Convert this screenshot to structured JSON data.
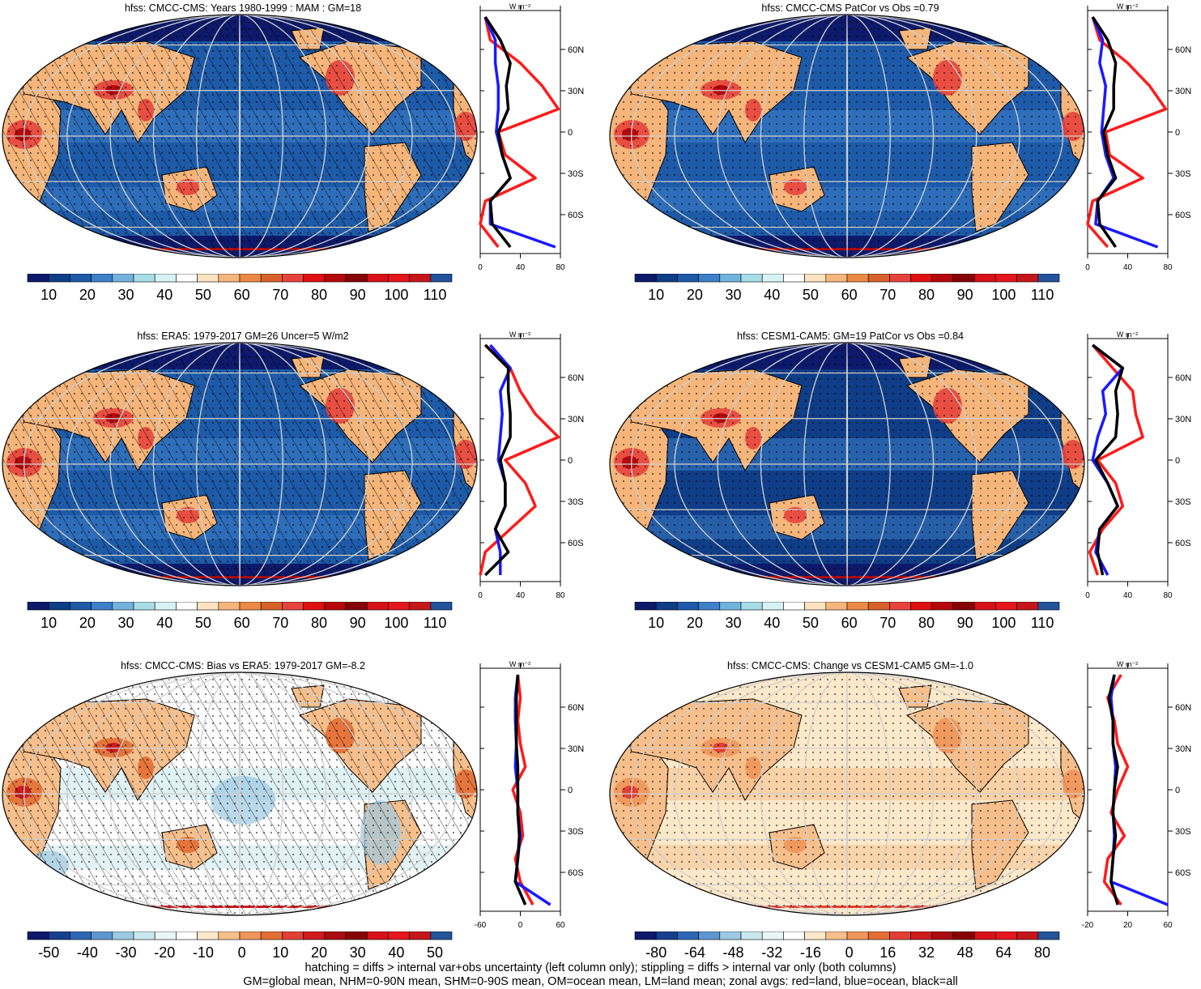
{
  "panels": [
    {
      "title": "hfss: CMCC-CMS: Years 1980-1999 : MAM : GM=18",
      "palette": "positive",
      "hatching": true,
      "stipple": true,
      "colorbar_labels": [
        "10",
        "20",
        "30",
        "40",
        "50",
        "60",
        "70",
        "80",
        "90",
        "100",
        "110"
      ],
      "zonal_ticks": [
        "0",
        "40",
        "80"
      ],
      "zonal_unit": "W m⁻²",
      "lat_labels": [
        "60N",
        "30N",
        "0",
        "30S",
        "60S"
      ]
    },
    {
      "title": "hfss: CMCC-CMS PatCor vs Obs =0.79",
      "palette": "positive",
      "hatching": false,
      "stipple": true,
      "colorbar_labels": [
        "10",
        "20",
        "30",
        "40",
        "50",
        "60",
        "70",
        "80",
        "90",
        "100",
        "110"
      ],
      "zonal_ticks": [
        "0",
        "40",
        "80"
      ],
      "zonal_unit": "W m⁻²",
      "lat_labels": [
        "60N",
        "30N",
        "0",
        "30S",
        "60S"
      ]
    },
    {
      "title": "hfss: ERA5: 1979-2017 GM=26 Uncer=5 W/m2",
      "palette": "positive",
      "hatching": true,
      "stipple": true,
      "colorbar_labels": [
        "10",
        "20",
        "30",
        "40",
        "50",
        "60",
        "70",
        "80",
        "90",
        "100",
        "110"
      ],
      "zonal_ticks": [
        "0",
        "40",
        "80"
      ],
      "zonal_unit": "W m⁻²",
      "lat_labels": [
        "60N",
        "30N",
        "0",
        "30S",
        "60S"
      ]
    },
    {
      "title": "hfss: CESM1-CAM5: GM=19 PatCor vs Obs =0.84",
      "palette": "positive",
      "hatching": false,
      "stipple": true,
      "colorbar_labels": [
        "10",
        "20",
        "30",
        "40",
        "50",
        "60",
        "70",
        "80",
        "90",
        "100",
        "110"
      ],
      "zonal_ticks": [
        "0",
        "40",
        "80"
      ],
      "zonal_unit": "W m⁻²",
      "lat_labels": [
        "60N",
        "30N",
        "0",
        "30S",
        "60S"
      ]
    },
    {
      "title": "hfss: CMCC-CMS: Bias vs ERA5: 1979-2017 GM=-8.2",
      "palette": "bias",
      "hatching": true,
      "stipple": true,
      "colorbar_labels": [
        "-50",
        "-40",
        "-30",
        "-20",
        "-10",
        "0",
        "10",
        "20",
        "30",
        "40",
        "50"
      ],
      "zonal_ticks": [
        "-60",
        "0",
        "60"
      ],
      "zonal_unit": "W m⁻²",
      "lat_labels": [
        "60N",
        "30N",
        "0",
        "30S",
        "60S"
      ]
    },
    {
      "title": "hfss: CMCC-CMS: Change vs CESM1-CAM5 GM=-1.0",
      "palette": "change",
      "hatching": false,
      "stipple": true,
      "colorbar_labels": [
        "-80",
        "-64",
        "-48",
        "-32",
        "-16",
        "0",
        "16",
        "32",
        "48",
        "64",
        "80"
      ],
      "zonal_ticks": [
        "-20",
        "20",
        "60"
      ],
      "zonal_unit": "W m⁻²",
      "lat_labels": [
        "60N",
        "30N",
        "0",
        "30S",
        "60S"
      ]
    }
  ],
  "colors": {
    "positive": [
      "#0d1a6b",
      "#0f3d87",
      "#1d5aa8",
      "#3d7fc9",
      "#72b3de",
      "#a7dde6",
      "#d6f2f2",
      "#ffffff",
      "#fce3c0",
      "#f6b57a",
      "#ec8a45",
      "#d8612a",
      "#e8423c",
      "#e00f12",
      "#b5080c",
      "#860407",
      "#d8101a",
      "#e5161c",
      "#c4161b",
      "#22539c"
    ],
    "bias": [
      "#0d1a6b",
      "#173f8f",
      "#2d67b5",
      "#5e97d0",
      "#9cc9e3",
      "#c7e8ec",
      "#e8f6f6",
      "#ffffff",
      "#fde8c9",
      "#f7bf8b",
      "#f0965a",
      "#e36d33",
      "#e23f36",
      "#cf1b1e",
      "#a90c11",
      "#860407",
      "#d8101a",
      "#e5161c",
      "#c4161b",
      "#22539c"
    ],
    "zonal_land": "#ff1a1a",
    "zonal_ocean": "#1a1aff",
    "zonal_all": "#000000"
  },
  "footer": {
    "line1": "hatching = diffs > internal var+obs uncertainty (left column only); stippling = diffs > internal var only (both columns)",
    "line2": "GM=global mean, NHM=0-90N mean, SHM=0-90S mean, OM=ocean mean, LM=land mean; zonal avgs: red=land, blue=ocean, black=all"
  },
  "chart_data": [
    {
      "type": "line",
      "title": "hfss: CMCC-CMS: Years 1980-1999 : MAM : GM=18",
      "xlim": [
        0,
        80
      ],
      "y": [
        "70N",
        "60N",
        "45N",
        "30N",
        "15N",
        "0",
        "15S",
        "30S",
        "45S",
        "60S",
        "70S"
      ],
      "series": [
        {
          "name": "red=land",
          "values": [
            5,
            10,
            40,
            62,
            78,
            18,
            25,
            55,
            5,
            0,
            18
          ]
        },
        {
          "name": "blue=ocean",
          "values": [
            5,
            15,
            15,
            18,
            18,
            16,
            22,
            30,
            10,
            10,
            75
          ]
        },
        {
          "name": "black=all",
          "values": [
            5,
            20,
            30,
            26,
            28,
            18,
            22,
            30,
            10,
            12,
            30
          ]
        }
      ]
    },
    {
      "type": "line",
      "title": "hfss: CMCC-CMS PatCor vs Obs =0.79",
      "xlim": [
        0,
        80
      ],
      "y": [
        "70N",
        "60N",
        "45N",
        "30N",
        "15N",
        "0",
        "15S",
        "30S",
        "45S",
        "60S",
        "70S"
      ],
      "series": [
        {
          "name": "red=land",
          "values": [
            5,
            12,
            40,
            62,
            78,
            18,
            22,
            55,
            5,
            0,
            20
          ]
        },
        {
          "name": "blue=ocean",
          "values": [
            5,
            15,
            12,
            18,
            16,
            14,
            18,
            26,
            10,
            8,
            70
          ]
        },
        {
          "name": "black=all",
          "values": [
            5,
            20,
            28,
            26,
            26,
            16,
            20,
            28,
            10,
            12,
            28
          ]
        }
      ]
    },
    {
      "type": "line",
      "title": "hfss: ERA5: 1979-2017 GM=26 Uncer=5 W/m2",
      "xlim": [
        0,
        80
      ],
      "y": [
        "70N",
        "60N",
        "45N",
        "30N",
        "15N",
        "0",
        "15S",
        "30S",
        "45S",
        "60S",
        "70S"
      ],
      "series": [
        {
          "name": "red=land",
          "values": [
            5,
            30,
            40,
            55,
            78,
            25,
            45,
            55,
            30,
            5,
            0
          ]
        },
        {
          "name": "blue=ocean",
          "values": [
            10,
            30,
            20,
            22,
            20,
            18,
            25,
            25,
            15,
            20,
            20
          ]
        },
        {
          "name": "black=all",
          "values": [
            5,
            28,
            28,
            30,
            30,
            20,
            25,
            25,
            15,
            28,
            5
          ]
        }
      ]
    },
    {
      "type": "line",
      "title": "hfss: CESM1-CAM5: GM=19 PatCor vs Obs =0.84",
      "xlim": [
        0,
        80
      ],
      "y": [
        "70N",
        "60N",
        "45N",
        "30N",
        "15N",
        "0",
        "15S",
        "30S",
        "45S",
        "60S",
        "70S"
      ],
      "series": [
        {
          "name": "red=land",
          "values": [
            5,
            25,
            45,
            48,
            55,
            10,
            28,
            35,
            15,
            2,
            10
          ]
        },
        {
          "name": "blue=ocean",
          "values": [
            5,
            35,
            15,
            18,
            10,
            5,
            20,
            30,
            12,
            8,
            20
          ]
        },
        {
          "name": "black=all",
          "values": [
            5,
            35,
            28,
            30,
            28,
            8,
            20,
            30,
            12,
            10,
            15
          ]
        }
      ]
    },
    {
      "type": "line",
      "title": "hfss: CMCC-CMS: Bias vs ERA5: 1979-2017 GM=-8.2",
      "xlim": [
        -80,
        80
      ],
      "y": [
        "70N",
        "60N",
        "45N",
        "30N",
        "15N",
        "0",
        "15S",
        "30S",
        "45S",
        "60S",
        "70S"
      ],
      "series": [
        {
          "name": "red=land",
          "values": [
            -5,
            0,
            -5,
            0,
            10,
            -15,
            0,
            5,
            -10,
            0,
            25
          ]
        },
        {
          "name": "blue=ocean",
          "values": [
            -5,
            -10,
            -10,
            -8,
            -10,
            -5,
            -5,
            0,
            -5,
            -10,
            60
          ]
        },
        {
          "name": "black=all",
          "values": [
            -5,
            -8,
            -8,
            -8,
            -5,
            -5,
            -5,
            -2,
            -5,
            -10,
            10
          ]
        }
      ]
    },
    {
      "type": "line",
      "title": "hfss: CMCC-CMS: Change vs CESM1-CAM5 GM=-1.0",
      "xlim": [
        -40,
        80
      ],
      "y": [
        "70N",
        "60N",
        "45N",
        "30N",
        "15N",
        "0",
        "15S",
        "30S",
        "45S",
        "60S",
        "70S"
      ],
      "series": [
        {
          "name": "red=land",
          "values": [
            10,
            -10,
            0,
            5,
            20,
            5,
            -5,
            15,
            -10,
            -15,
            10
          ]
        },
        {
          "name": "blue=ocean",
          "values": [
            0,
            -5,
            -2,
            -2,
            2,
            0,
            -2,
            0,
            -2,
            -5,
            80
          ]
        },
        {
          "name": "black=all",
          "values": [
            0,
            -8,
            -2,
            -2,
            5,
            0,
            -2,
            2,
            -2,
            -5,
            5
          ]
        }
      ]
    }
  ]
}
